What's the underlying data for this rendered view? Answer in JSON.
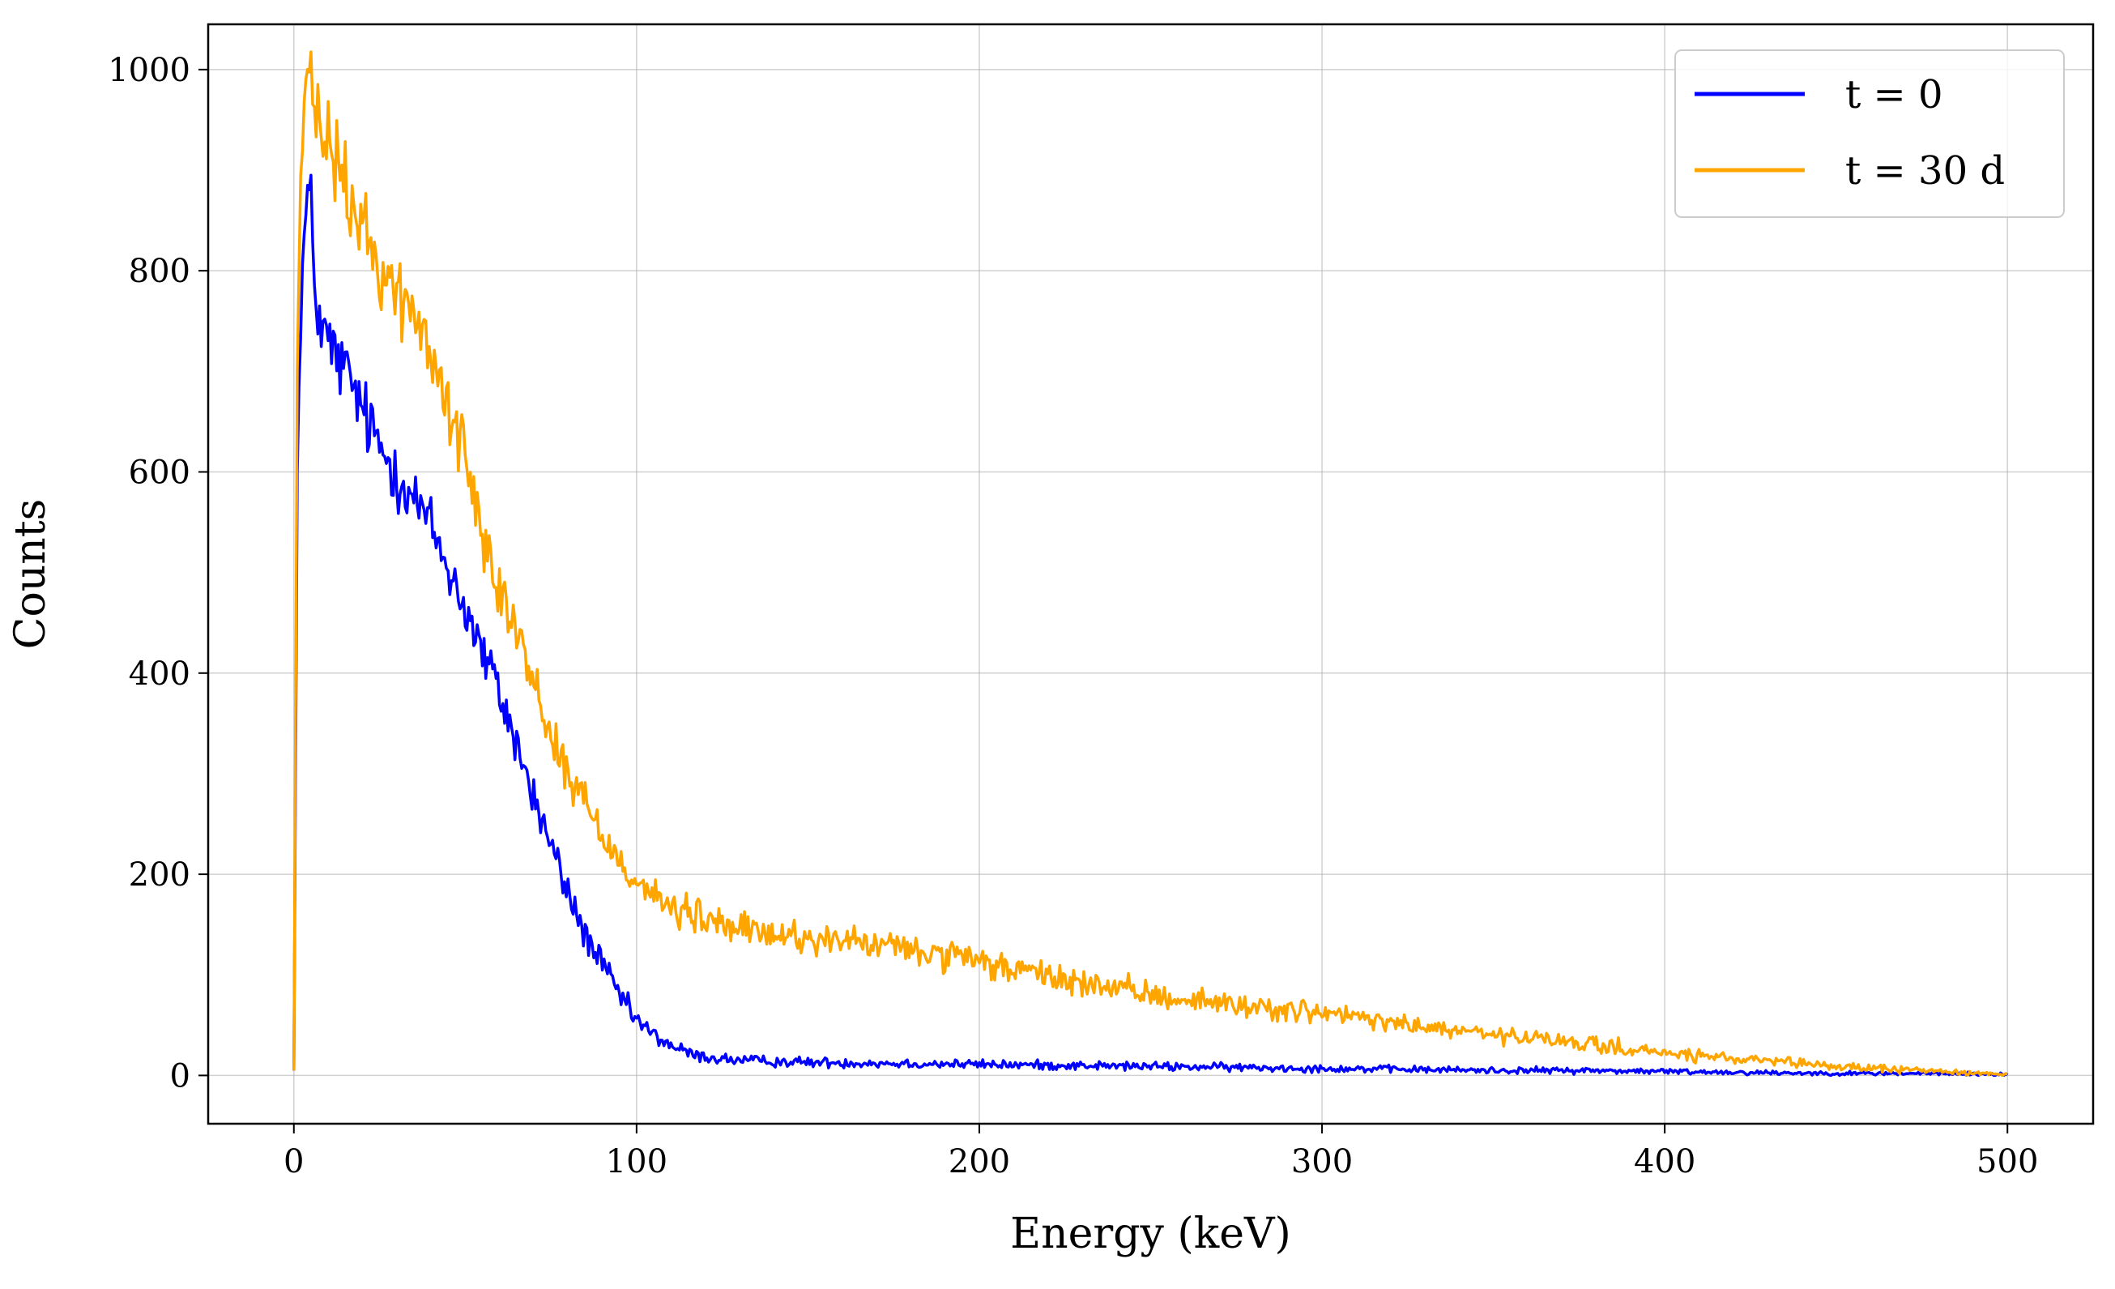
{
  "chart_data": {
    "type": "line",
    "title": "",
    "xlabel": "Energy (keV)",
    "ylabel": "Counts",
    "xlim": [
      -25,
      525
    ],
    "ylim": [
      -48,
      1045
    ],
    "xticks": [
      0,
      100,
      200,
      300,
      400,
      500
    ],
    "yticks": [
      0,
      200,
      400,
      600,
      800,
      1000
    ],
    "grid": true,
    "legend_position": "top-right",
    "series": [
      {
        "name": "t = 0",
        "color": "#0000ff",
        "x": [
          0,
          1,
          2,
          3,
          4,
          5,
          6,
          8,
          10,
          12,
          15,
          18,
          20,
          25,
          30,
          35,
          40,
          45,
          50,
          55,
          60,
          65,
          70,
          75,
          80,
          85,
          90,
          95,
          100,
          105,
          110,
          115,
          120,
          130,
          140,
          150,
          175,
          200,
          225,
          250,
          275,
          300,
          325,
          350,
          375,
          400,
          425,
          450,
          475,
          500
        ],
        "y": [
          5,
          600,
          770,
          830,
          875,
          860,
          790,
          740,
          730,
          715,
          700,
          680,
          660,
          625,
          600,
          575,
          545,
          505,
          465,
          420,
          380,
          330,
          275,
          230,
          180,
          140,
          110,
          80,
          55,
          40,
          30,
          22,
          18,
          15,
          14,
          13,
          12,
          11,
          10,
          9,
          8,
          7,
          6,
          5,
          5,
          4,
          3,
          2,
          2,
          1
        ]
      },
      {
        "name": "t = 30 d",
        "color": "#ffa500",
        "x": [
          0,
          1,
          2,
          3,
          4,
          5,
          6,
          8,
          10,
          12,
          15,
          18,
          20,
          25,
          30,
          35,
          40,
          45,
          50,
          55,
          60,
          65,
          70,
          75,
          80,
          85,
          90,
          95,
          100,
          105,
          110,
          120,
          130,
          140,
          150,
          175,
          200,
          225,
          250,
          275,
          300,
          325,
          350,
          375,
          400,
          425,
          450,
          475,
          500
        ],
        "y": [
          5,
          700,
          900,
          960,
          990,
          980,
          960,
          935,
          925,
          910,
          880,
          855,
          840,
          805,
          780,
          755,
          715,
          670,
          610,
          550,
          490,
          440,
          390,
          340,
          300,
          270,
          240,
          215,
          195,
          180,
          165,
          155,
          145,
          140,
          137,
          128,
          112,
          95,
          80,
          70,
          62,
          50,
          40,
          32,
          22,
          15,
          9,
          5,
          1
        ]
      }
    ]
  }
}
